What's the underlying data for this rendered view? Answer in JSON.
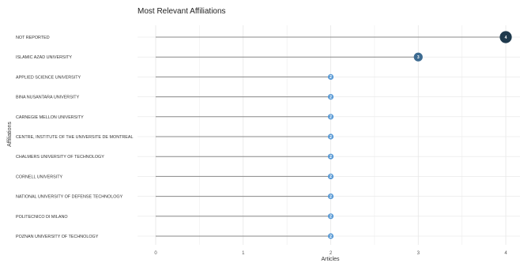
{
  "chart_data": {
    "type": "lollipop",
    "title": "Most Relevant Affiliations",
    "xlabel": "Articles",
    "ylabel": "Affiliations",
    "xlim": [
      0,
      4
    ],
    "xticks": [
      "0",
      "1",
      "2",
      "3",
      "4"
    ],
    "grid": true,
    "categories": [
      "NOT REPORTED",
      "ISLAMIC AZAD UNIVERSITY",
      "APPLIED SCIENCE UNIVERSITY",
      "BINA NUSANTARA UNIVERSITY",
      "CARNEGIE MELLON UNIVERSITY",
      "CENTRE, INSTITUTE OF THE UNIVERSITE DE MONTREAL",
      "CHALMERS UNIVERSITY OF TECHNOLOGY",
      "CORNELL UNIVERSITY",
      "NATIONAL UNIVERSITY OF DEFENSE TECHNOLOGY",
      "POLITECNICO DI MILANO",
      "POZNAN UNIVERSITY OF TECHNOLOGY"
    ],
    "values": [
      4,
      3,
      2,
      2,
      2,
      2,
      2,
      2,
      2,
      2,
      2
    ],
    "colors": {
      "low": "#5b9bd5",
      "high": "#1f3a4d",
      "stem": "#888888",
      "grid": "#e6e6e6"
    }
  }
}
